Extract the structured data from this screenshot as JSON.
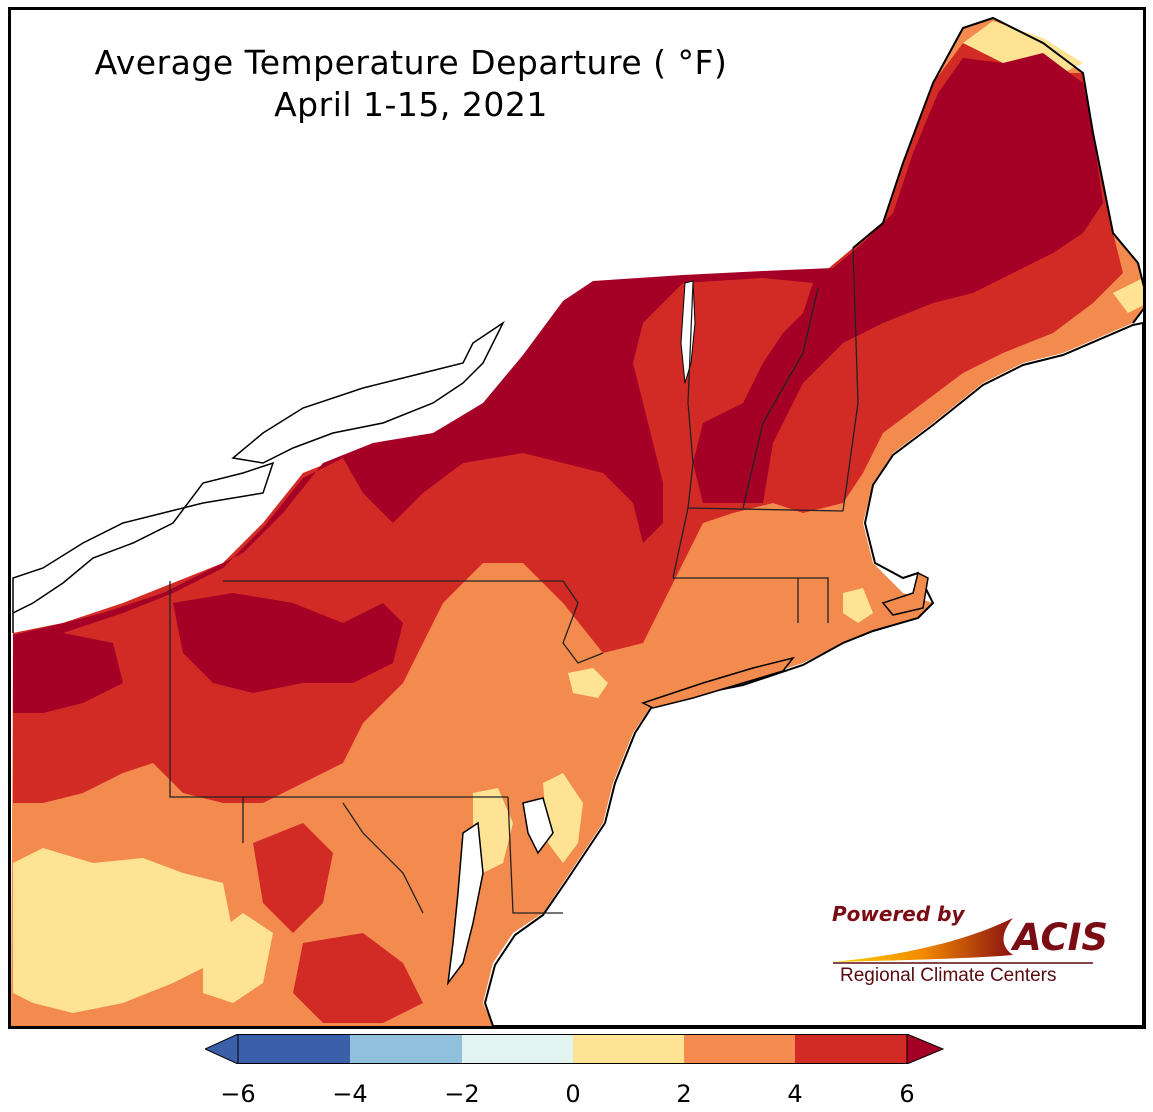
{
  "map": {
    "title": "Average Temperature Departure ( °F)",
    "subtitle": "April 1-15, 2021"
  },
  "legend": {
    "ticks": [
      "−6",
      "−4",
      "−2",
      "0",
      "2",
      "4",
      "6"
    ],
    "colors": {
      "below_-4": "#3b5fa8",
      "-4_to_-2": "#90c0dc",
      "-2_to_0": "#e3f3ef",
      "0_to_2": "#fee394",
      "2_to_4": "#f38b4f",
      "4_to_6": "#d22b26",
      "above_6": "#a50026"
    }
  },
  "logo": {
    "powered_by": "Powered by",
    "acis": "ACIS",
    "org": "Regional Climate Centers"
  }
}
